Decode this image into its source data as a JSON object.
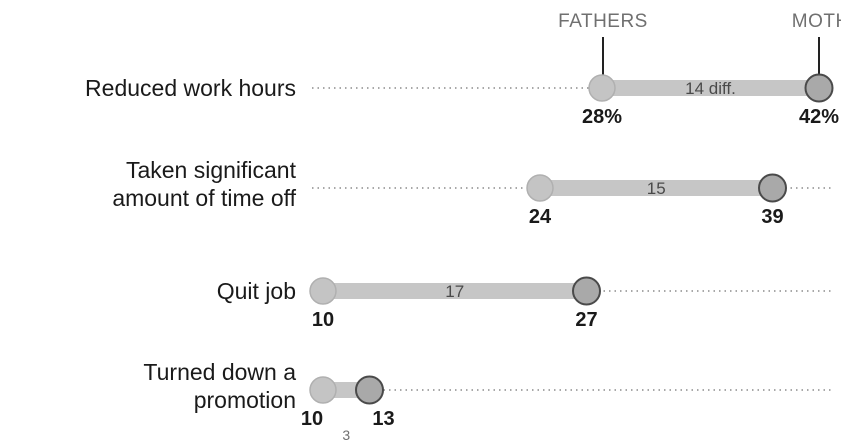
{
  "chart_data": {
    "type": "dot",
    "legend": {
      "fathers": "FATHERS",
      "mothers": "MOTHERS"
    },
    "series": [
      {
        "name": "FATHERS",
        "color": "#c4c4c4"
      },
      {
        "name": "MOTHERS",
        "color": "#a9a9a9"
      }
    ],
    "rows": [
      {
        "category": [
          "Reduced work hours"
        ],
        "fathers": 28,
        "mothers": 42,
        "fathers_label": "28%",
        "mothers_label": "42%",
        "diff": 14,
        "diff_label": "14 diff."
      },
      {
        "category": [
          "Taken significant",
          "amount of time off"
        ],
        "fathers": 24,
        "mothers": 39,
        "fathers_label": "24",
        "mothers_label": "39",
        "diff": 15,
        "diff_label": "15"
      },
      {
        "category": [
          "Quit job"
        ],
        "fathers": 10,
        "mothers": 27,
        "fathers_label": "10",
        "mothers_label": "27",
        "diff": 17,
        "diff_label": "17"
      },
      {
        "category": [
          "Turned down a",
          "promotion"
        ],
        "fathers": 10,
        "mothers": 13,
        "fathers_label": "10",
        "mothers_label": "13",
        "diff": 3,
        "diff_label": "3"
      }
    ]
  }
}
